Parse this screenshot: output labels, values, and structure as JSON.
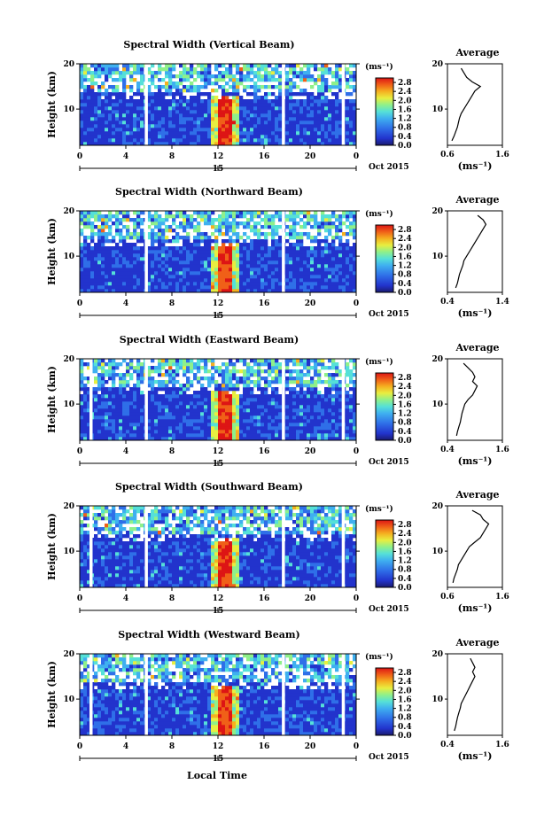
{
  "figure": {
    "xlabel_bottom": "Local Time",
    "date_label": "Oct 2015",
    "day_label": "15",
    "colorbar_unit": "(ms⁻¹)",
    "colorbar_ticks": [
      "2.8",
      "2.4",
      "2.0",
      "1.6",
      "1.2",
      "0.8",
      "0.4",
      "0.0"
    ],
    "colors": {
      "scale": [
        "#1a1a6e",
        "#2233cc",
        "#2f6fe8",
        "#3fb0f0",
        "#55e0d8",
        "#8ff08a",
        "#e8ee40",
        "#f5b020",
        "#f06018",
        "#dd1515"
      ]
    }
  },
  "chart_data": [
    {
      "type": "heatmap",
      "title": "Spectral Width (Vertical Beam)",
      "ylabel": "Height (km)",
      "x_ticks": [
        "0",
        "4",
        "8",
        "12",
        "16",
        "20",
        "0"
      ],
      "y_ticks": [
        "20",
        "10"
      ],
      "xlim": [
        0,
        24
      ],
      "ylim": [
        2,
        20
      ],
      "colorbar_range": [
        0.0,
        3.0
      ],
      "data_gaps_hours": [
        5.8,
        17.7,
        22.9
      ],
      "feature": "high spectral width column near 12-13 LT from 2 to 13 km",
      "average_profile": {
        "title": "Average",
        "xlabel": "(ms⁻¹)",
        "x_ticks": [
          "0.6",
          "1.6"
        ],
        "xlim": [
          0.6,
          1.6
        ],
        "y_ticks": [
          "20",
          "10"
        ],
        "ylim": [
          2,
          20
        ],
        "height": [
          3,
          4,
          5,
          6,
          7,
          8,
          9,
          10,
          11,
          12,
          13,
          14,
          15,
          16,
          17,
          18,
          19
        ],
        "value": [
          0.68,
          0.72,
          0.75,
          0.78,
          0.8,
          0.82,
          0.85,
          0.9,
          0.95,
          1.0,
          1.05,
          1.1,
          1.2,
          1.05,
          0.95,
          0.9,
          0.85
        ]
      }
    },
    {
      "type": "heatmap",
      "title": "Spectral Width (Northward Beam)",
      "ylabel": "Height (km)",
      "x_ticks": [
        "0",
        "4",
        "8",
        "12",
        "16",
        "20",
        "0"
      ],
      "y_ticks": [
        "20",
        "10"
      ],
      "xlim": [
        0,
        24
      ],
      "ylim": [
        2,
        20
      ],
      "colorbar_range": [
        0.0,
        3.0
      ],
      "data_gaps_hours": [
        5.8,
        17.7
      ],
      "feature": "high spectral width column near 12-13 LT from 2 to 13 km",
      "average_profile": {
        "title": "Average",
        "xlabel": "(ms⁻¹)",
        "x_ticks": [
          "0.4",
          "1.4"
        ],
        "xlim": [
          0.4,
          1.4
        ],
        "y_ticks": [
          "20",
          "10"
        ],
        "ylim": [
          2,
          20
        ],
        "height": [
          3,
          4,
          5,
          6,
          7,
          8,
          9,
          10,
          11,
          12,
          13,
          14,
          15,
          16,
          17,
          18,
          19
        ],
        "value": [
          0.55,
          0.58,
          0.6,
          0.62,
          0.65,
          0.68,
          0.7,
          0.75,
          0.8,
          0.85,
          0.9,
          0.95,
          1.0,
          1.05,
          1.1,
          1.05,
          0.95
        ]
      }
    },
    {
      "type": "heatmap",
      "title": "Spectral Width (Eastward Beam)",
      "ylabel": "Height (km)",
      "x_ticks": [
        "0",
        "4",
        "8",
        "12",
        "16",
        "20",
        "0"
      ],
      "y_ticks": [
        "20",
        "10"
      ],
      "xlim": [
        0,
        24
      ],
      "ylim": [
        2,
        20
      ],
      "colorbar_range": [
        0.0,
        3.0
      ],
      "data_gaps_hours": [
        1.0,
        5.8,
        17.7,
        22.9
      ],
      "feature": "high spectral width column near 12-13 LT from 2 to 13 km",
      "average_profile": {
        "title": "Average",
        "xlabel": "(ms⁻¹)",
        "x_ticks": [
          "0.4",
          "1.6"
        ],
        "xlim": [
          0.4,
          1.6
        ],
        "y_ticks": [
          "20",
          "10"
        ],
        "ylim": [
          2,
          20
        ],
        "height": [
          3,
          4,
          5,
          6,
          7,
          8,
          9,
          10,
          11,
          12,
          13,
          14,
          15,
          16,
          17,
          18,
          19
        ],
        "value": [
          0.6,
          0.62,
          0.65,
          0.68,
          0.7,
          0.72,
          0.75,
          0.78,
          0.85,
          0.95,
          1.0,
          1.05,
          0.95,
          1.0,
          0.95,
          0.85,
          0.75
        ]
      }
    },
    {
      "type": "heatmap",
      "title": "Spectral Width (Southward Beam)",
      "ylabel": "Height (km)",
      "x_ticks": [
        "0",
        "4",
        "8",
        "12",
        "16",
        "20",
        "0"
      ],
      "y_ticks": [
        "20",
        "10"
      ],
      "xlim": [
        0,
        24
      ],
      "ylim": [
        2,
        20
      ],
      "colorbar_range": [
        0.0,
        3.0
      ],
      "data_gaps_hours": [
        1.0,
        5.8,
        17.7,
        22.9
      ],
      "feature": "high spectral width column near 12-13 LT from 2 to 13 km",
      "average_profile": {
        "title": "Average",
        "xlabel": "(ms⁻¹)",
        "x_ticks": [
          "0.6",
          "1.6"
        ],
        "xlim": [
          0.6,
          1.6
        ],
        "y_ticks": [
          "20",
          "10"
        ],
        "ylim": [
          2,
          20
        ],
        "height": [
          3,
          4,
          5,
          6,
          7,
          8,
          9,
          10,
          11,
          12,
          13,
          14,
          15,
          16,
          17,
          18,
          19
        ],
        "value": [
          0.7,
          0.72,
          0.75,
          0.78,
          0.8,
          0.85,
          0.9,
          0.95,
          1.0,
          1.1,
          1.2,
          1.25,
          1.3,
          1.35,
          1.25,
          1.2,
          1.05
        ]
      }
    },
    {
      "type": "heatmap",
      "title": "Spectral Width (Westward Beam)",
      "ylabel": "Height (km)",
      "x_ticks": [
        "0",
        "4",
        "8",
        "12",
        "16",
        "20",
        "0"
      ],
      "y_ticks": [
        "20",
        "10"
      ],
      "xlim": [
        0,
        24
      ],
      "ylim": [
        2,
        20
      ],
      "colorbar_range": [
        0.0,
        3.0
      ],
      "data_gaps_hours": [
        1.0,
        5.8,
        17.7,
        22.9
      ],
      "feature": "high spectral width column near 12-13 LT from 2 to 13 km",
      "average_profile": {
        "title": "Average",
        "xlabel": "(ms⁻¹)",
        "x_ticks": [
          "0.4",
          "1.6"
        ],
        "xlim": [
          0.4,
          1.6
        ],
        "y_ticks": [
          "20",
          "10"
        ],
        "ylim": [
          2,
          20
        ],
        "height": [
          3,
          4,
          5,
          6,
          7,
          8,
          9,
          10,
          11,
          12,
          13,
          14,
          15,
          16,
          17,
          18,
          19
        ],
        "value": [
          0.55,
          0.58,
          0.6,
          0.62,
          0.65,
          0.68,
          0.7,
          0.75,
          0.8,
          0.85,
          0.9,
          0.95,
          1.0,
          0.95,
          1.0,
          0.95,
          0.9
        ]
      }
    }
  ]
}
